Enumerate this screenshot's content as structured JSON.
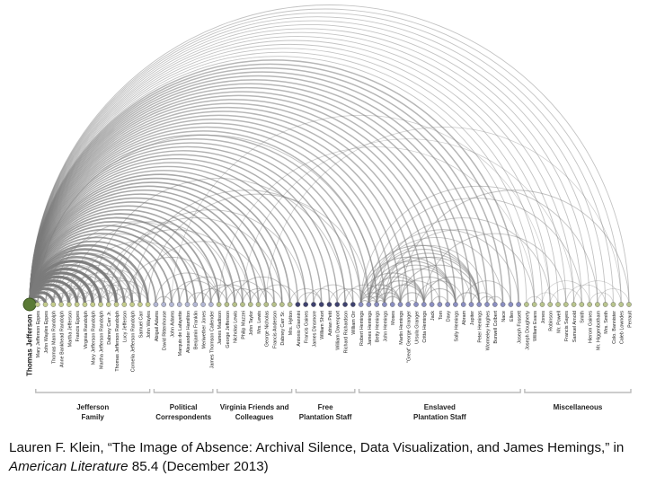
{
  "diagram": {
    "nodes": [
      {
        "label": "Thomas Jefferson",
        "group": "jefferson",
        "main": true
      },
      {
        "label": "Mary Jefferson Eppes",
        "group": "jefferson"
      },
      {
        "label": "John Wayles Eppes",
        "group": "jefferson"
      },
      {
        "label": "Thomas Mann Randolph",
        "group": "jefferson"
      },
      {
        "label": "Anne Bankhead Randolph",
        "group": "jefferson"
      },
      {
        "label": "Martha Jefferson",
        "group": "jefferson"
      },
      {
        "label": "Francis Eppes",
        "group": "jefferson"
      },
      {
        "label": "Virginia Randolph",
        "group": "jefferson"
      },
      {
        "label": "Mary Jefferson Randolph",
        "group": "jefferson"
      },
      {
        "label": "Martha Jefferson Randolph",
        "group": "jefferson"
      },
      {
        "label": "Dabney Carr Jr.",
        "group": "jefferson"
      },
      {
        "label": "Thomas Jefferson Randolph",
        "group": "jefferson"
      },
      {
        "label": "Lucy Jefferson",
        "group": "jefferson"
      },
      {
        "label": "Cornelia Jefferson Randolph",
        "group": "jefferson"
      },
      {
        "label": "Samuel Carr",
        "group": "jefferson"
      },
      {
        "label": "John Wayles",
        "group": "jefferson"
      },
      {
        "label": "Abigail Adams",
        "group": "political"
      },
      {
        "label": "David Rittenhouse",
        "group": "political"
      },
      {
        "label": "John Adams",
        "group": "political"
      },
      {
        "label": "Marquis de Lafayette",
        "group": "political"
      },
      {
        "label": "Alexander Hamilton",
        "group": "political"
      },
      {
        "label": "Benjamin Franklin",
        "group": "political"
      },
      {
        "label": "Meriwether Jones",
        "group": "political"
      },
      {
        "label": "James Thomson Callender",
        "group": "political"
      },
      {
        "label": "James Madison",
        "group": "virginia"
      },
      {
        "label": "George Jefferson",
        "group": "virginia"
      },
      {
        "label": "Nicholas Lewis",
        "group": "virginia"
      },
      {
        "label": "Philip Mazzei",
        "group": "virginia"
      },
      {
        "label": "John Taylor",
        "group": "virginia"
      },
      {
        "label": "Mrs. Lewis",
        "group": "virginia"
      },
      {
        "label": "George Nicholas",
        "group": "virginia"
      },
      {
        "label": "Francis Anderson",
        "group": "virginia"
      },
      {
        "label": "Dabney Carr Sr.",
        "group": "virginia"
      },
      {
        "label": "Mrs. Hylton",
        "group": "virginia"
      },
      {
        "label": "Antonio Giannini",
        "group": "free"
      },
      {
        "label": "Francis Gaines",
        "group": "free"
      },
      {
        "label": "James Dinsmore",
        "group": "free"
      },
      {
        "label": "William Short",
        "group": "free"
      },
      {
        "label": "Adrian Petit",
        "group": "free"
      },
      {
        "label": "William Davenport",
        "group": "free"
      },
      {
        "label": "Richard Richardson",
        "group": "free"
      },
      {
        "label": "William Orr",
        "group": "free"
      },
      {
        "label": "Robert Hemings",
        "group": "enslaved"
      },
      {
        "label": "James Hemings",
        "group": "enslaved"
      },
      {
        "label": "Betty Hemings",
        "group": "enslaved"
      },
      {
        "label": "John Hemings",
        "group": "enslaved"
      },
      {
        "label": "Moses",
        "group": "enslaved"
      },
      {
        "label": "Martin Hemings",
        "group": "enslaved"
      },
      {
        "label": "\"Great\" George Granger",
        "group": "enslaved"
      },
      {
        "label": "Ursula Granger",
        "group": "enslaved"
      },
      {
        "label": "Critta Hemings",
        "group": "enslaved"
      },
      {
        "label": "Jack",
        "group": "enslaved"
      },
      {
        "label": "Tom",
        "group": "enslaved"
      },
      {
        "label": "Davy",
        "group": "enslaved"
      },
      {
        "label": "Sally Hemings",
        "group": "enslaved"
      },
      {
        "label": "Abram",
        "group": "enslaved"
      },
      {
        "label": "Jupiter",
        "group": "enslaved"
      },
      {
        "label": "Peter Hemings",
        "group": "enslaved"
      },
      {
        "label": "Wormeley Hughes",
        "group": "enslaved"
      },
      {
        "label": "Burwell Colbert",
        "group": "enslaved"
      },
      {
        "label": "Nace",
        "group": "enslaved"
      },
      {
        "label": "Ellen",
        "group": "enslaved"
      },
      {
        "label": "Joseph Fossett",
        "group": "enslaved"
      },
      {
        "label": "Joseph Dougherty",
        "group": "misc"
      },
      {
        "label": "William Evans",
        "group": "misc"
      },
      {
        "label": "Jones",
        "group": "misc"
      },
      {
        "label": "Robinson",
        "group": "misc"
      },
      {
        "label": "Mr. Powell",
        "group": "misc"
      },
      {
        "label": "Francis Sayes",
        "group": "misc"
      },
      {
        "label": "Samuel Arnold",
        "group": "misc"
      },
      {
        "label": "Smith",
        "group": "misc"
      },
      {
        "label": "Hierom Gaines",
        "group": "misc"
      },
      {
        "label": "Mr. Higgenbotham",
        "group": "misc"
      },
      {
        "label": "Mrs. Smith",
        "group": "misc"
      },
      {
        "label": "Colo. Bannister",
        "group": "misc"
      },
      {
        "label": "Caleb Lowndes",
        "group": "misc"
      },
      {
        "label": "Perrault",
        "group": "misc"
      }
    ],
    "groups": [
      {
        "id": "jefferson",
        "label_lines": [
          "Jefferson",
          "Family"
        ],
        "first": 1,
        "last": 15
      },
      {
        "id": "political",
        "label_lines": [
          "Political",
          "Correspondents"
        ],
        "first": 16,
        "last": 23
      },
      {
        "id": "virginia",
        "label_lines": [
          "Virginia Friends and",
          "Colleagues"
        ],
        "first": 24,
        "last": 33
      },
      {
        "id": "free",
        "label_lines": [
          "Free",
          "Plantation Staff"
        ],
        "first": 34,
        "last": 41
      },
      {
        "id": "enslaved",
        "label_lines": [
          "Enslaved",
          "Plantation Staff"
        ],
        "first": 42,
        "last": 62
      },
      {
        "id": "misc",
        "label_lines": [
          "Miscellaneous"
        ],
        "first": 63,
        "last": 76
      }
    ],
    "colors": {
      "jefferson": "#c4cc8c",
      "political": "#b3b7d3",
      "virginia": "#b6c08a",
      "free": "#3f4270",
      "enslaved": "#8b8fc1",
      "misc": "#b9c58e",
      "main": "#5a7a35",
      "arc": "#7a7a7a",
      "bracket": "#bbbbbb",
      "text": "#222222"
    }
  },
  "caption": {
    "author": "Lauren F. Klein, “The Image of Absence: Archival Silence, Data Visualization, and James Hemings,” in ",
    "journal": "American Literature",
    "issue": " 85.4 (December 2013)"
  }
}
